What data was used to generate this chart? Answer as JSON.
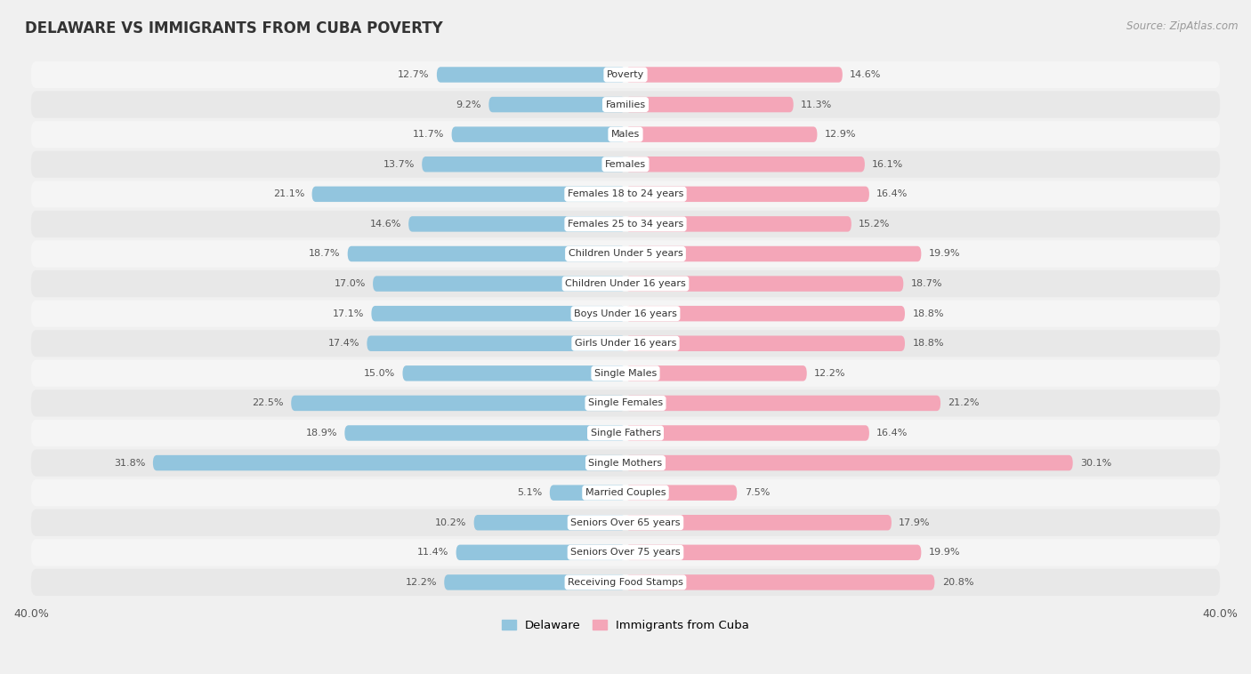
{
  "title": "DELAWARE VS IMMIGRANTS FROM CUBA POVERTY",
  "source": "Source: ZipAtlas.com",
  "categories": [
    "Poverty",
    "Families",
    "Males",
    "Females",
    "Females 18 to 24 years",
    "Females 25 to 34 years",
    "Children Under 5 years",
    "Children Under 16 years",
    "Boys Under 16 years",
    "Girls Under 16 years",
    "Single Males",
    "Single Females",
    "Single Fathers",
    "Single Mothers",
    "Married Couples",
    "Seniors Over 65 years",
    "Seniors Over 75 years",
    "Receiving Food Stamps"
  ],
  "delaware": [
    12.7,
    9.2,
    11.7,
    13.7,
    21.1,
    14.6,
    18.7,
    17.0,
    17.1,
    17.4,
    15.0,
    22.5,
    18.9,
    31.8,
    5.1,
    10.2,
    11.4,
    12.2
  ],
  "cuba": [
    14.6,
    11.3,
    12.9,
    16.1,
    16.4,
    15.2,
    19.9,
    18.7,
    18.8,
    18.8,
    12.2,
    21.2,
    16.4,
    30.1,
    7.5,
    17.9,
    19.9,
    20.8
  ],
  "delaware_color": "#92c5de",
  "cuba_color": "#f4a6b8",
  "background_color": "#f0f0f0",
  "row_color_light": "#f5f5f5",
  "row_color_dark": "#e8e8e8",
  "xlim": 40.0,
  "bar_height": 0.52,
  "legend_labels": [
    "Delaware",
    "Immigrants from Cuba"
  ]
}
